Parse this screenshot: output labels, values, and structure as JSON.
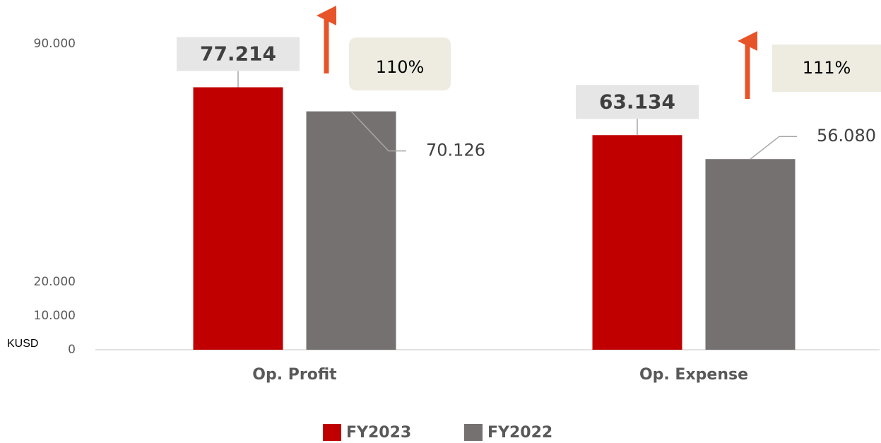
{
  "chart_data": {
    "type": "bar",
    "categories": [
      "Op. Profit",
      "Op. Expense"
    ],
    "series": [
      {
        "name": "FY2023",
        "color": "#c00000",
        "values": [
          77214,
          63134
        ],
        "value_labels": [
          "77.214",
          "63.134"
        ]
      },
      {
        "name": "FY2022",
        "color": "#767171",
        "values": [
          70126,
          56080
        ],
        "value_labels": [
          "70.126",
          "56.080"
        ]
      }
    ],
    "ylim": [
      0,
      90000
    ],
    "yticks": [
      0,
      {
        "value": 10000,
        "label": "10.000"
      },
      {
        "value": 20000,
        "label": "20.000"
      },
      {
        "value": 90000,
        "label": "90.000"
      }
    ],
    "y_unit": "KUSD",
    "annotations": [
      "110%",
      "111%"
    ]
  }
}
